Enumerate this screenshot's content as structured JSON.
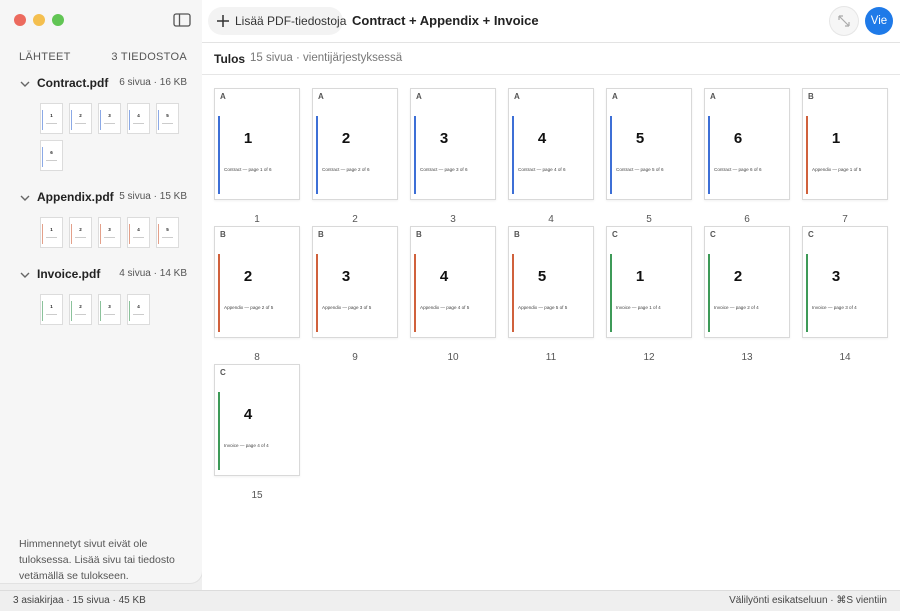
{
  "toolbar": {
    "add_button": "Lisää PDF-tiedostoja",
    "title": "Contract + Appendix + Invoice",
    "export_button": "Vie"
  },
  "sidebar": {
    "heading": "LÄHTEET",
    "count": "3 TIEDOSTOA",
    "sources": [
      {
        "name": "Contract.pdf",
        "info": "6 sivua · 16 KB",
        "color": "#3d6fd6",
        "pages": [
          1,
          2,
          3,
          4,
          5,
          6
        ]
      },
      {
        "name": "Appendix.pdf",
        "info": "5 sivua · 15 KB",
        "color": "#d0613c",
        "pages": [
          1,
          2,
          3,
          4,
          5
        ]
      },
      {
        "name": "Invoice.pdf",
        "info": "4 sivua · 14 KB",
        "color": "#3e9a58",
        "pages": [
          1,
          2,
          3,
          4
        ]
      }
    ],
    "note": "Himmennetyt sivut eivät ole tuloksessa. Lisää sivu tai tiedosto vetämällä se tulokseen."
  },
  "result": {
    "title": "Tulos",
    "summary": "15 sivua · vientijärjestyksessä",
    "pages": [
      {
        "letter": "A",
        "number": 1,
        "caption": "Contract — page 1 of 6",
        "index": 1,
        "color": "#3d6fd6"
      },
      {
        "letter": "A",
        "number": 2,
        "caption": "Contract — page 2 of 6",
        "index": 2,
        "color": "#3d6fd6"
      },
      {
        "letter": "A",
        "number": 3,
        "caption": "Contract — page 3 of 6",
        "index": 3,
        "color": "#3d6fd6"
      },
      {
        "letter": "A",
        "number": 4,
        "caption": "Contract — page 4 of 6",
        "index": 4,
        "color": "#3d6fd6"
      },
      {
        "letter": "A",
        "number": 5,
        "caption": "Contract — page 5 of 6",
        "index": 5,
        "color": "#3d6fd6"
      },
      {
        "letter": "A",
        "number": 6,
        "caption": "Contract — page 6 of 6",
        "index": 6,
        "color": "#3d6fd6"
      },
      {
        "letter": "B",
        "number": 1,
        "caption": "Appendix — page 1 of 5",
        "index": 7,
        "color": "#d0613c"
      },
      {
        "letter": "B",
        "number": 2,
        "caption": "Appendix — page 2 of 5",
        "index": 8,
        "color": "#d0613c"
      },
      {
        "letter": "B",
        "number": 3,
        "caption": "Appendix — page 3 of 5",
        "index": 9,
        "color": "#d0613c"
      },
      {
        "letter": "B",
        "number": 4,
        "caption": "Appendix — page 4 of 5",
        "index": 10,
        "color": "#d0613c"
      },
      {
        "letter": "B",
        "number": 5,
        "caption": "Appendix — page 5 of 5",
        "index": 11,
        "color": "#d0613c"
      },
      {
        "letter": "C",
        "number": 1,
        "caption": "Invoice — page 1 of 4",
        "index": 12,
        "color": "#3e9a58"
      },
      {
        "letter": "C",
        "number": 2,
        "caption": "Invoice — page 2 of 4",
        "index": 13,
        "color": "#3e9a58"
      },
      {
        "letter": "C",
        "number": 3,
        "caption": "Invoice — page 3 of 4",
        "index": 14,
        "color": "#3e9a58"
      },
      {
        "letter": "C",
        "number": 4,
        "caption": "Invoice — page 4 of 4",
        "index": 15,
        "color": "#3e9a58"
      }
    ]
  },
  "status": {
    "left": "3 asiakirjaa · 15 sivua · 45 KB",
    "right": "Välilyönti esikatseluun · ⌘S vientiin"
  }
}
